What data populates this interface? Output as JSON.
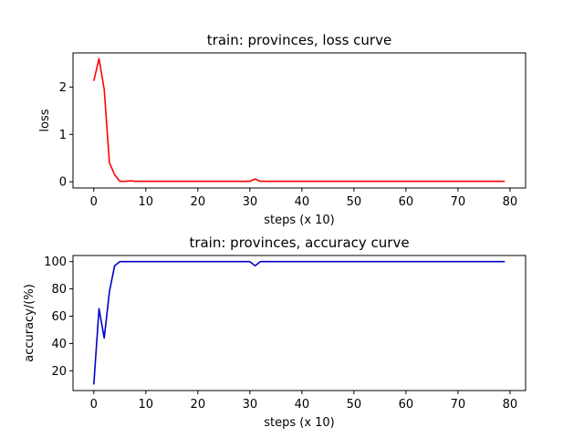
{
  "chart_data": [
    {
      "type": "line",
      "title": "train: provinces, loss curve",
      "xlabel": "steps (x 10)",
      "ylabel": "loss",
      "xlim": [
        -4,
        83
      ],
      "ylim": [
        -0.13,
        2.72
      ],
      "xticks": [
        0,
        10,
        20,
        30,
        40,
        50,
        60,
        70,
        80
      ],
      "yticks": [
        0,
        1,
        2
      ],
      "grid": false,
      "color": "#ff0000",
      "series": [
        {
          "x": [
            0,
            1,
            2,
            3,
            4,
            5,
            6,
            7,
            8,
            9,
            10,
            11,
            12,
            13,
            14,
            15,
            16,
            17,
            18,
            19,
            20,
            21,
            22,
            23,
            24,
            25,
            26,
            27,
            28,
            29,
            30,
            31,
            32,
            33,
            34,
            35,
            36,
            37,
            38,
            39,
            40,
            41,
            42,
            43,
            44,
            45,
            46,
            47,
            48,
            49,
            50,
            51,
            52,
            53,
            54,
            55,
            56,
            57,
            58,
            59,
            60,
            61,
            62,
            63,
            64,
            65,
            66,
            67,
            68,
            69,
            70,
            71,
            72,
            73,
            74,
            75,
            76,
            77,
            78,
            79
          ],
          "y": [
            2.13,
            2.6,
            1.95,
            0.4,
            0.15,
            0.01,
            0.01,
            0.02,
            0.01,
            0.01,
            0.01,
            0.01,
            0.01,
            0.01,
            0.01,
            0.01,
            0.01,
            0.01,
            0.01,
            0.01,
            0.01,
            0.01,
            0.01,
            0.01,
            0.01,
            0.01,
            0.01,
            0.01,
            0.01,
            0.01,
            0.01,
            0.06,
            0.01,
            0.01,
            0.01,
            0.01,
            0.01,
            0.01,
            0.01,
            0.01,
            0.01,
            0.01,
            0.01,
            0.01,
            0.01,
            0.01,
            0.01,
            0.01,
            0.01,
            0.01,
            0.01,
            0.01,
            0.01,
            0.01,
            0.01,
            0.01,
            0.01,
            0.01,
            0.01,
            0.01,
            0.01,
            0.01,
            0.01,
            0.01,
            0.01,
            0.01,
            0.01,
            0.01,
            0.01,
            0.01,
            0.01,
            0.01,
            0.01,
            0.01,
            0.01,
            0.01,
            0.01,
            0.01,
            0.01,
            0.01
          ]
        }
      ]
    },
    {
      "type": "line",
      "title": "train: provinces, accuracy curve",
      "xlabel": "steps (x 10)",
      "ylabel": "accuracy/(%)",
      "xlim": [
        -4,
        83
      ],
      "ylim": [
        5.5,
        104.5
      ],
      "xticks": [
        0,
        10,
        20,
        30,
        40,
        50,
        60,
        70,
        80
      ],
      "yticks": [
        20,
        40,
        60,
        80,
        100
      ],
      "grid": false,
      "color": "#0000cc",
      "series": [
        {
          "x": [
            0,
            1,
            2,
            3,
            4,
            5,
            6,
            7,
            8,
            9,
            10,
            11,
            12,
            13,
            14,
            15,
            16,
            17,
            18,
            19,
            20,
            21,
            22,
            23,
            24,
            25,
            26,
            27,
            28,
            29,
            30,
            31,
            32,
            33,
            34,
            35,
            36,
            37,
            38,
            39,
            40,
            41,
            42,
            43,
            44,
            45,
            46,
            47,
            48,
            49,
            50,
            51,
            52,
            53,
            54,
            55,
            56,
            57,
            58,
            59,
            60,
            61,
            62,
            63,
            64,
            65,
            66,
            67,
            68,
            69,
            70,
            71,
            72,
            73,
            74,
            75,
            76,
            77,
            78,
            79
          ],
          "y": [
            10,
            65.5,
            44,
            78,
            97,
            100,
            100,
            100,
            100,
            100,
            100,
            100,
            100,
            100,
            100,
            100,
            100,
            100,
            100,
            100,
            100,
            100,
            100,
            100,
            100,
            100,
            100,
            100,
            100,
            100,
            100,
            97,
            100,
            100,
            100,
            100,
            100,
            100,
            100,
            100,
            100,
            100,
            100,
            100,
            100,
            100,
            100,
            100,
            100,
            100,
            100,
            100,
            100,
            100,
            100,
            100,
            100,
            100,
            100,
            100,
            100,
            100,
            100,
            100,
            100,
            100,
            100,
            100,
            100,
            100,
            100,
            100,
            100,
            100,
            100,
            100,
            100,
            100,
            100,
            100
          ]
        }
      ]
    }
  ]
}
